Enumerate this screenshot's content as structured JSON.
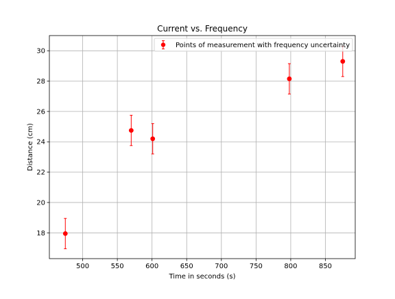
{
  "chart_data": {
    "type": "scatter",
    "title": "Current vs. Frequency",
    "xlabel": "Time in seconds (s)",
    "ylabel": "Distance (cm)",
    "xlim": [
      452,
      893
    ],
    "ylim": [
      16.3,
      31.0
    ],
    "xticks": [
      500,
      550,
      600,
      650,
      700,
      750,
      800,
      850
    ],
    "yticks": [
      18,
      20,
      22,
      24,
      26,
      28,
      30
    ],
    "grid": true,
    "legend_position": "upper-right",
    "series": [
      {
        "name": "Points of measurement with frequency uncertainty",
        "color": "#ff0000",
        "marker": "circle",
        "x": [
          475,
          570,
          601,
          798,
          875
        ],
        "y": [
          17.95,
          24.75,
          24.2,
          28.15,
          29.3
        ],
        "yerr": [
          1.0,
          1.0,
          1.0,
          1.0,
          1.0
        ]
      }
    ]
  }
}
